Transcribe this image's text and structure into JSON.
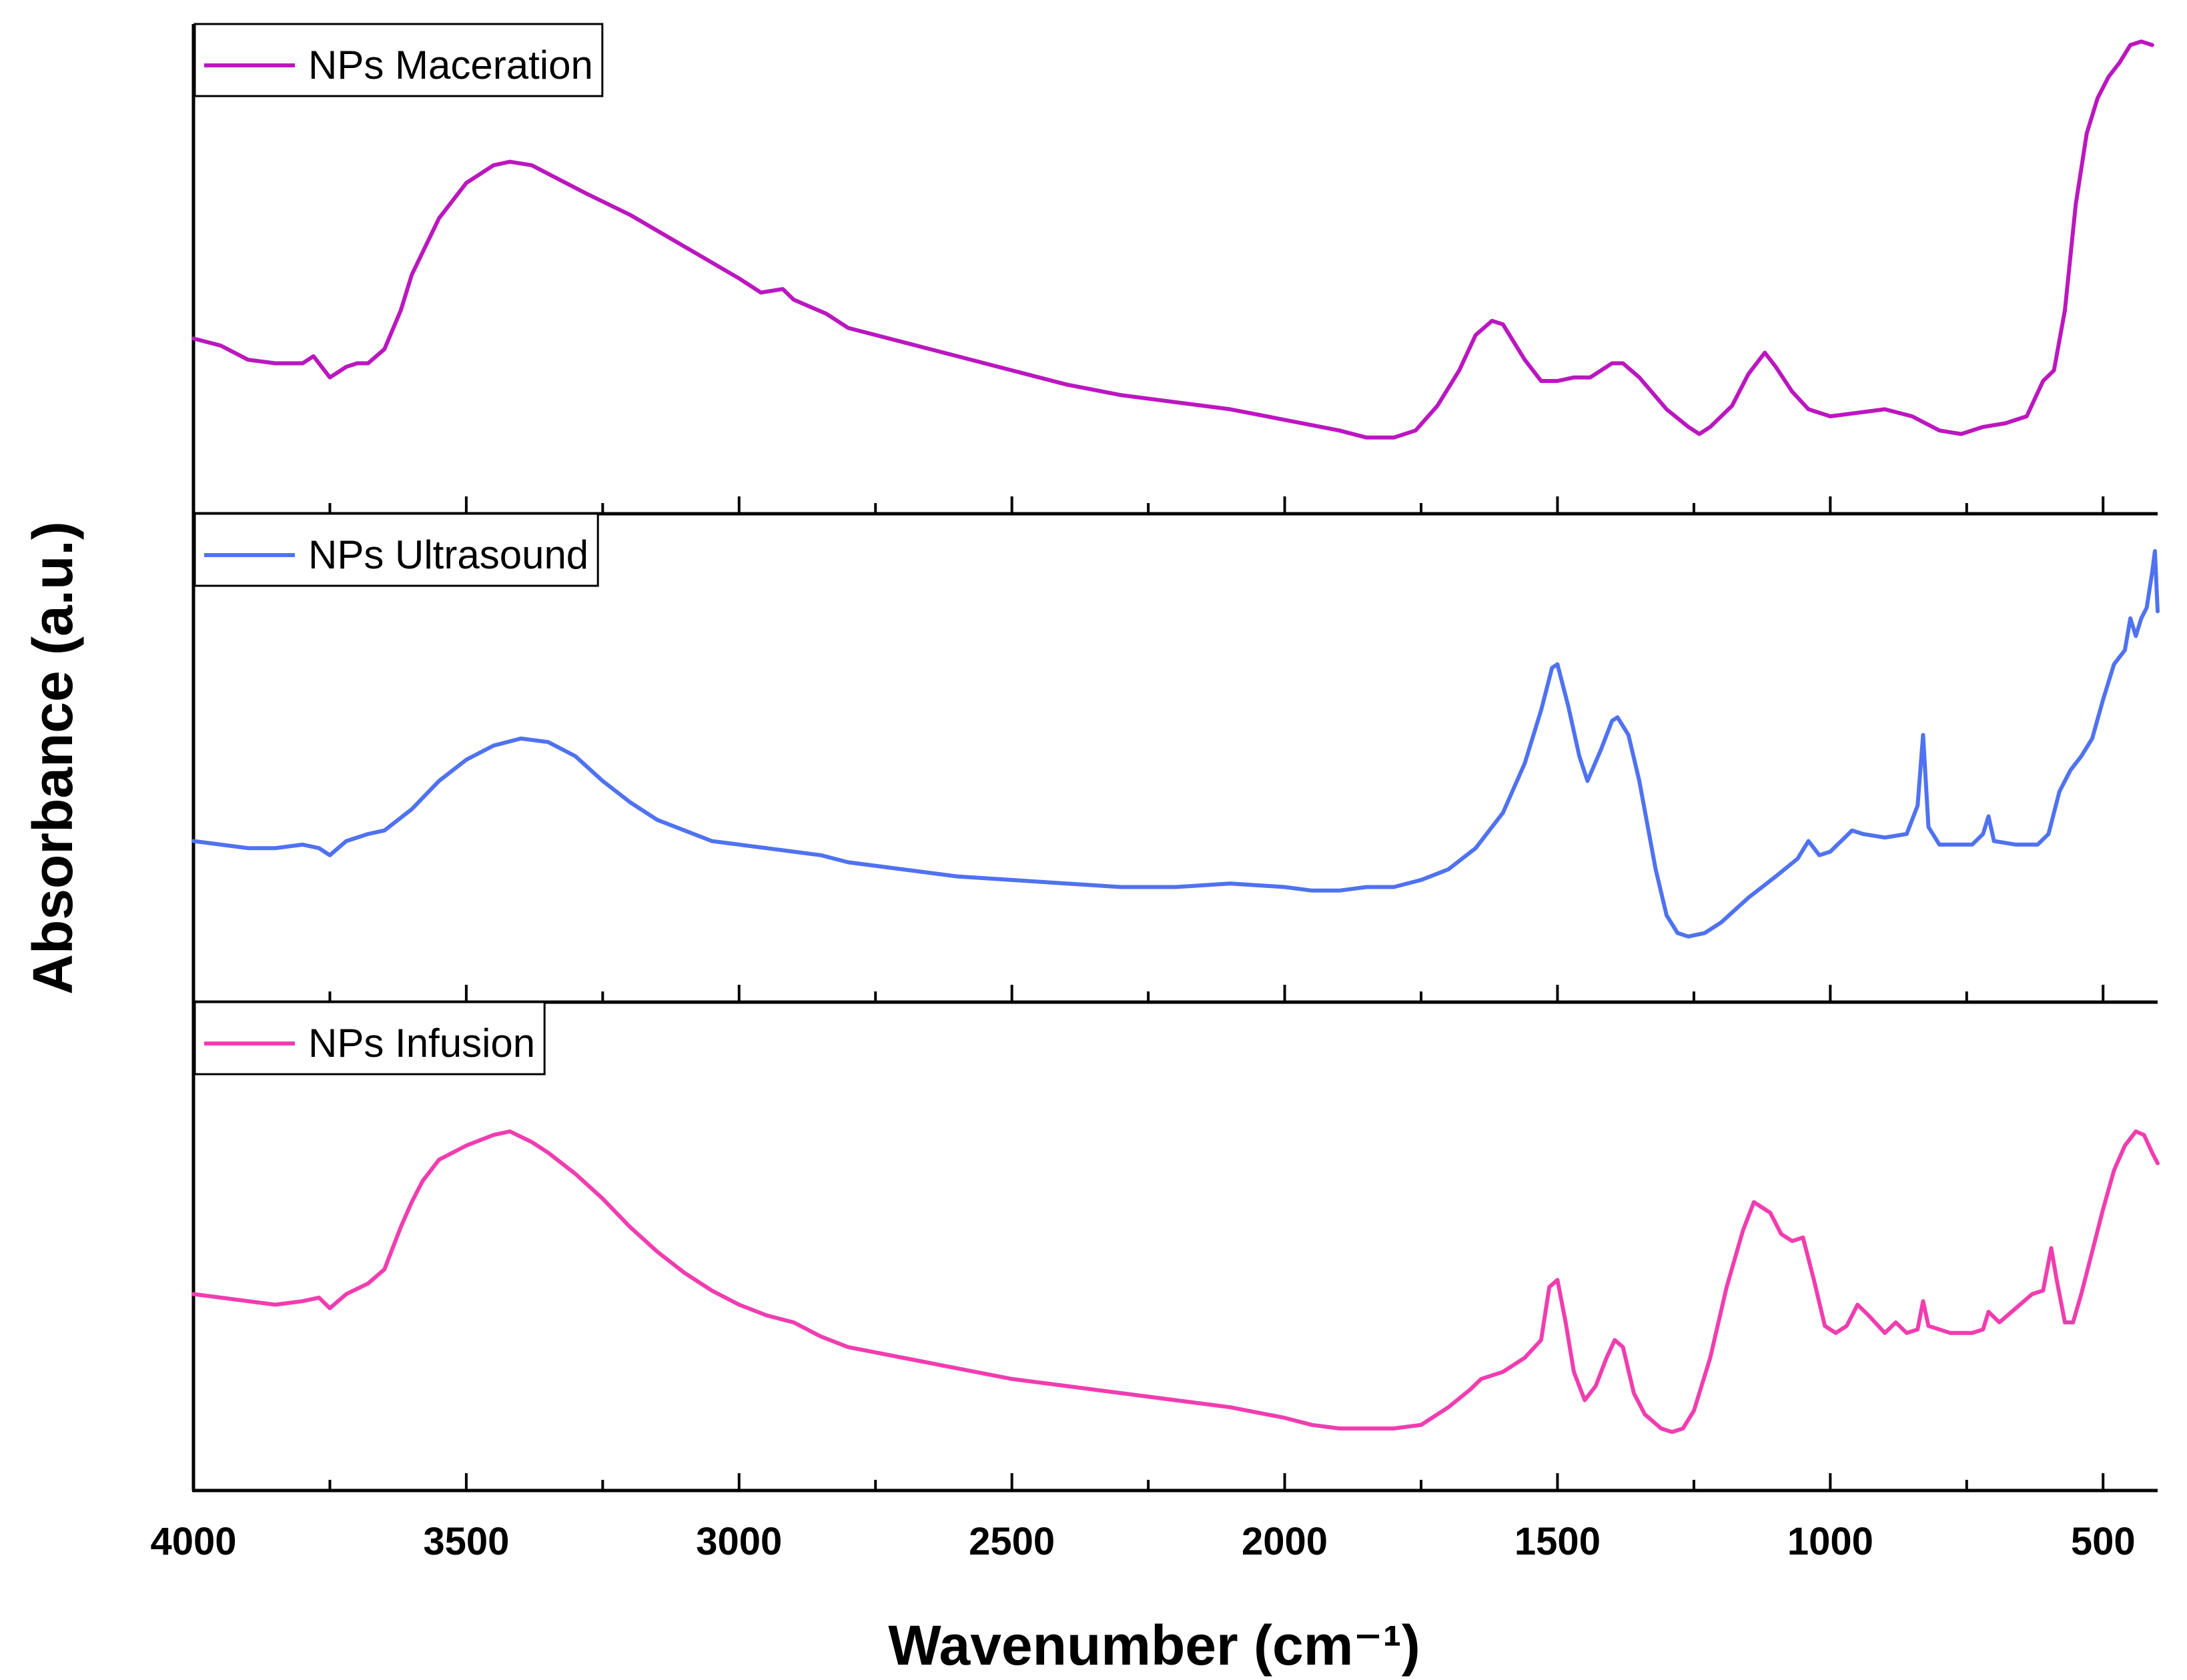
{
  "chart_data": {
    "type": "line",
    "title": "",
    "xlabel": "Wavenumber (cm⁻¹)",
    "ylabel": "Absorbance (a.u.)",
    "xlim": [
      4000,
      400
    ],
    "xticks": [
      "4000",
      "3500",
      "3000",
      "2500",
      "2000",
      "1500",
      "1000",
      "500"
    ],
    "grid": false,
    "legend_position": "top-left of each panel",
    "panels": [
      {
        "name": "NPs Maceration",
        "color": "#BB17BF",
        "points": [
          [
            4000,
            0.42
          ],
          [
            3950,
            0.4
          ],
          [
            3900,
            0.36
          ],
          [
            3850,
            0.35
          ],
          [
            3800,
            0.35
          ],
          [
            3780,
            0.37
          ],
          [
            3750,
            0.31
          ],
          [
            3720,
            0.34
          ],
          [
            3700,
            0.35
          ],
          [
            3680,
            0.35
          ],
          [
            3650,
            0.39
          ],
          [
            3620,
            0.5
          ],
          [
            3600,
            0.6
          ],
          [
            3550,
            0.76
          ],
          [
            3500,
            0.86
          ],
          [
            3450,
            0.91
          ],
          [
            3420,
            0.92
          ],
          [
            3380,
            0.91
          ],
          [
            3330,
            0.87
          ],
          [
            3280,
            0.83
          ],
          [
            3200,
            0.77
          ],
          [
            3100,
            0.68
          ],
          [
            3000,
            0.59
          ],
          [
            2960,
            0.55
          ],
          [
            2920,
            0.56
          ],
          [
            2900,
            0.53
          ],
          [
            2870,
            0.51
          ],
          [
            2840,
            0.49
          ],
          [
            2800,
            0.45
          ],
          [
            2700,
            0.41
          ],
          [
            2600,
            0.37
          ],
          [
            2500,
            0.33
          ],
          [
            2400,
            0.29
          ],
          [
            2300,
            0.26
          ],
          [
            2200,
            0.24
          ],
          [
            2100,
            0.22
          ],
          [
            2000,
            0.19
          ],
          [
            1900,
            0.16
          ],
          [
            1850,
            0.14
          ],
          [
            1800,
            0.14
          ],
          [
            1760,
            0.16
          ],
          [
            1720,
            0.23
          ],
          [
            1680,
            0.33
          ],
          [
            1650,
            0.43
          ],
          [
            1620,
            0.47
          ],
          [
            1600,
            0.46
          ],
          [
            1560,
            0.36
          ],
          [
            1530,
            0.3
          ],
          [
            1500,
            0.3
          ],
          [
            1470,
            0.31
          ],
          [
            1440,
            0.31
          ],
          [
            1400,
            0.35
          ],
          [
            1380,
            0.35
          ],
          [
            1350,
            0.31
          ],
          [
            1300,
            0.22
          ],
          [
            1260,
            0.17
          ],
          [
            1240,
            0.15
          ],
          [
            1220,
            0.17
          ],
          [
            1180,
            0.23
          ],
          [
            1150,
            0.32
          ],
          [
            1120,
            0.38
          ],
          [
            1100,
            0.34
          ],
          [
            1070,
            0.27
          ],
          [
            1040,
            0.22
          ],
          [
            1000,
            0.2
          ],
          [
            950,
            0.21
          ],
          [
            900,
            0.22
          ],
          [
            850,
            0.2
          ],
          [
            800,
            0.16
          ],
          [
            760,
            0.15
          ],
          [
            720,
            0.17
          ],
          [
            680,
            0.18
          ],
          [
            640,
            0.2
          ],
          [
            610,
            0.3
          ],
          [
            590,
            0.33
          ],
          [
            570,
            0.5
          ],
          [
            550,
            0.8
          ],
          [
            530,
            1.0
          ],
          [
            510,
            1.1
          ],
          [
            490,
            1.16
          ],
          [
            470,
            1.2
          ],
          [
            450,
            1.25
          ],
          [
            430,
            1.26
          ],
          [
            410,
            1.25
          ]
        ]
      },
      {
        "name": "NPs Ultrasound",
        "color": "#4F72F0",
        "points": [
          [
            4000,
            0.38
          ],
          [
            3950,
            0.37
          ],
          [
            3900,
            0.36
          ],
          [
            3850,
            0.36
          ],
          [
            3800,
            0.37
          ],
          [
            3770,
            0.36
          ],
          [
            3750,
            0.34
          ],
          [
            3720,
            0.38
          ],
          [
            3680,
            0.4
          ],
          [
            3650,
            0.41
          ],
          [
            3600,
            0.47
          ],
          [
            3550,
            0.55
          ],
          [
            3500,
            0.61
          ],
          [
            3450,
            0.65
          ],
          [
            3400,
            0.67
          ],
          [
            3350,
            0.66
          ],
          [
            3300,
            0.62
          ],
          [
            3250,
            0.55
          ],
          [
            3200,
            0.49
          ],
          [
            3150,
            0.44
          ],
          [
            3100,
            0.41
          ],
          [
            3050,
            0.38
          ],
          [
            3000,
            0.37
          ],
          [
            2950,
            0.36
          ],
          [
            2900,
            0.35
          ],
          [
            2850,
            0.34
          ],
          [
            2800,
            0.32
          ],
          [
            2700,
            0.3
          ],
          [
            2600,
            0.28
          ],
          [
            2500,
            0.27
          ],
          [
            2400,
            0.26
          ],
          [
            2300,
            0.25
          ],
          [
            2200,
            0.25
          ],
          [
            2100,
            0.26
          ],
          [
            2000,
            0.25
          ],
          [
            1950,
            0.24
          ],
          [
            1900,
            0.24
          ],
          [
            1850,
            0.25
          ],
          [
            1800,
            0.25
          ],
          [
            1750,
            0.27
          ],
          [
            1700,
            0.3
          ],
          [
            1650,
            0.36
          ],
          [
            1600,
            0.46
          ],
          [
            1560,
            0.6
          ],
          [
            1530,
            0.75
          ],
          [
            1510,
            0.87
          ],
          [
            1500,
            0.88
          ],
          [
            1480,
            0.76
          ],
          [
            1460,
            0.62
          ],
          [
            1445,
            0.55
          ],
          [
            1420,
            0.64
          ],
          [
            1400,
            0.72
          ],
          [
            1390,
            0.73
          ],
          [
            1370,
            0.68
          ],
          [
            1350,
            0.55
          ],
          [
            1320,
            0.3
          ],
          [
            1300,
            0.17
          ],
          [
            1280,
            0.12
          ],
          [
            1260,
            0.11
          ],
          [
            1230,
            0.12
          ],
          [
            1200,
            0.15
          ],
          [
            1150,
            0.22
          ],
          [
            1100,
            0.28
          ],
          [
            1060,
            0.33
          ],
          [
            1040,
            0.38
          ],
          [
            1020,
            0.34
          ],
          [
            1000,
            0.35
          ],
          [
            960,
            0.41
          ],
          [
            940,
            0.4
          ],
          [
            900,
            0.39
          ],
          [
            860,
            0.4
          ],
          [
            840,
            0.48
          ],
          [
            830,
            0.68
          ],
          [
            820,
            0.42
          ],
          [
            800,
            0.37
          ],
          [
            760,
            0.37
          ],
          [
            740,
            0.37
          ],
          [
            720,
            0.4
          ],
          [
            710,
            0.45
          ],
          [
            700,
            0.38
          ],
          [
            660,
            0.37
          ],
          [
            620,
            0.37
          ],
          [
            600,
            0.4
          ],
          [
            580,
            0.52
          ],
          [
            560,
            0.58
          ],
          [
            540,
            0.62
          ],
          [
            520,
            0.67
          ],
          [
            500,
            0.78
          ],
          [
            480,
            0.88
          ],
          [
            460,
            0.92
          ],
          [
            450,
            1.01
          ],
          [
            440,
            0.96
          ],
          [
            430,
            1.01
          ],
          [
            420,
            1.04
          ],
          [
            410,
            1.14
          ],
          [
            405,
            1.2
          ],
          [
            400,
            1.03
          ]
        ]
      },
      {
        "name": "NPs Infusion",
        "color": "#F03DB0",
        "points": [
          [
            4000,
            0.48
          ],
          [
            3950,
            0.47
          ],
          [
            3900,
            0.46
          ],
          [
            3850,
            0.45
          ],
          [
            3800,
            0.46
          ],
          [
            3770,
            0.47
          ],
          [
            3750,
            0.44
          ],
          [
            3720,
            0.48
          ],
          [
            3680,
            0.51
          ],
          [
            3650,
            0.55
          ],
          [
            3620,
            0.67
          ],
          [
            3600,
            0.74
          ],
          [
            3580,
            0.8
          ],
          [
            3550,
            0.86
          ],
          [
            3500,
            0.9
          ],
          [
            3450,
            0.93
          ],
          [
            3420,
            0.94
          ],
          [
            3380,
            0.91
          ],
          [
            3350,
            0.88
          ],
          [
            3300,
            0.82
          ],
          [
            3250,
            0.75
          ],
          [
            3200,
            0.67
          ],
          [
            3150,
            0.6
          ],
          [
            3100,
            0.54
          ],
          [
            3050,
            0.49
          ],
          [
            3000,
            0.45
          ],
          [
            2950,
            0.42
          ],
          [
            2900,
            0.4
          ],
          [
            2850,
            0.36
          ],
          [
            2800,
            0.33
          ],
          [
            2700,
            0.3
          ],
          [
            2600,
            0.27
          ],
          [
            2500,
            0.24
          ],
          [
            2400,
            0.22
          ],
          [
            2300,
            0.2
          ],
          [
            2200,
            0.18
          ],
          [
            2100,
            0.16
          ],
          [
            2000,
            0.13
          ],
          [
            1950,
            0.11
          ],
          [
            1900,
            0.1
          ],
          [
            1850,
            0.1
          ],
          [
            1800,
            0.1
          ],
          [
            1750,
            0.11
          ],
          [
            1700,
            0.16
          ],
          [
            1660,
            0.21
          ],
          [
            1640,
            0.24
          ],
          [
            1600,
            0.26
          ],
          [
            1560,
            0.3
          ],
          [
            1530,
            0.35
          ],
          [
            1515,
            0.5
          ],
          [
            1500,
            0.52
          ],
          [
            1485,
            0.4
          ],
          [
            1470,
            0.26
          ],
          [
            1450,
            0.18
          ],
          [
            1430,
            0.22
          ],
          [
            1410,
            0.3
          ],
          [
            1395,
            0.35
          ],
          [
            1380,
            0.33
          ],
          [
            1360,
            0.2
          ],
          [
            1340,
            0.14
          ],
          [
            1310,
            0.1
          ],
          [
            1290,
            0.09
          ],
          [
            1270,
            0.1
          ],
          [
            1250,
            0.15
          ],
          [
            1220,
            0.3
          ],
          [
            1190,
            0.5
          ],
          [
            1160,
            0.66
          ],
          [
            1140,
            0.74
          ],
          [
            1110,
            0.71
          ],
          [
            1090,
            0.65
          ],
          [
            1070,
            0.63
          ],
          [
            1050,
            0.64
          ],
          [
            1030,
            0.52
          ],
          [
            1010,
            0.39
          ],
          [
            990,
            0.37
          ],
          [
            970,
            0.39
          ],
          [
            950,
            0.45
          ],
          [
            930,
            0.42
          ],
          [
            900,
            0.37
          ],
          [
            880,
            0.4
          ],
          [
            860,
            0.37
          ],
          [
            840,
            0.38
          ],
          [
            830,
            0.46
          ],
          [
            820,
            0.39
          ],
          [
            780,
            0.37
          ],
          [
            740,
            0.37
          ],
          [
            720,
            0.38
          ],
          [
            710,
            0.43
          ],
          [
            690,
            0.4
          ],
          [
            660,
            0.44
          ],
          [
            630,
            0.48
          ],
          [
            610,
            0.49
          ],
          [
            595,
            0.61
          ],
          [
            585,
            0.52
          ],
          [
            570,
            0.4
          ],
          [
            555,
            0.4
          ],
          [
            540,
            0.48
          ],
          [
            520,
            0.6
          ],
          [
            500,
            0.72
          ],
          [
            480,
            0.83
          ],
          [
            460,
            0.9
          ],
          [
            440,
            0.94
          ],
          [
            425,
            0.93
          ],
          [
            410,
            0.88
          ],
          [
            400,
            0.85
          ]
        ]
      }
    ]
  }
}
